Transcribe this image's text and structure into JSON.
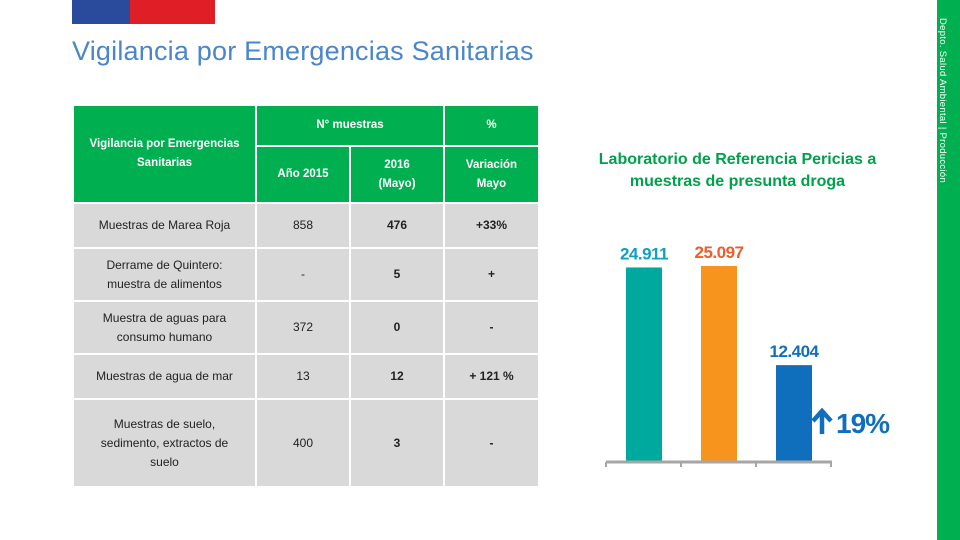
{
  "page": {
    "title": "Vigilancia por Emergencias Sanitarias",
    "side_label": "Depto. Salud Ambiental | Producción",
    "colors": {
      "flag_blue": "#2a4b9b",
      "flag_red": "#e01e25",
      "title": "#4a86c8",
      "accent_green": "#00b050"
    }
  },
  "table": {
    "headers": {
      "main": "Vigilancia por Emergencias Sanitarias",
      "muestras": "N° muestras",
      "pct": "%",
      "y2015": "Año 2015",
      "y2016_line1": "2016",
      "y2016_line2": "(Mayo)",
      "var_line1": "Variación",
      "var_line2": "Mayo"
    },
    "rows": [
      {
        "label": [
          "Muestras de Marea Roja"
        ],
        "y2015": "858",
        "y2016": "476",
        "var": "+33%"
      },
      {
        "label": [
          "Derrame de Quintero:",
          "muestra de alimentos"
        ],
        "y2015": "-",
        "y2016": "5",
        "var": "+"
      },
      {
        "label": [
          "Muestra de aguas para",
          "consumo humano"
        ],
        "y2015": "372",
        "y2016": "0",
        "var": "-"
      },
      {
        "label": [
          "Muestras de agua de mar"
        ],
        "y2015": "13",
        "y2016": "12",
        "var": "+ 121 %"
      },
      {
        "label": [
          "Muestras de suelo,",
          "sedimento, extractos de",
          "suelo"
        ],
        "y2015": "400",
        "y2016": "3",
        "var": "-"
      }
    ]
  },
  "chart_data": {
    "type": "bar",
    "title": [
      "Laboratorio de Referencia Pericias a",
      "muestras de presunta droga"
    ],
    "values": [
      24911,
      25097,
      12404
    ],
    "data_labels": [
      "24.911",
      "25.097",
      "12.404"
    ],
    "colors": [
      "#00a99d",
      "#f7941d",
      "#0f6fbd"
    ],
    "label_colors": [
      "#0f9fc4",
      "#ef5b2a",
      "#0f6fbd"
    ],
    "annotation": "19%",
    "annotation_icon": "up-arrow-icon",
    "annotation_color": "#0f6fbd",
    "ylim": [
      0,
      25097
    ],
    "axis_color": "#a6a6a6",
    "grid": false,
    "legend": "none"
  }
}
